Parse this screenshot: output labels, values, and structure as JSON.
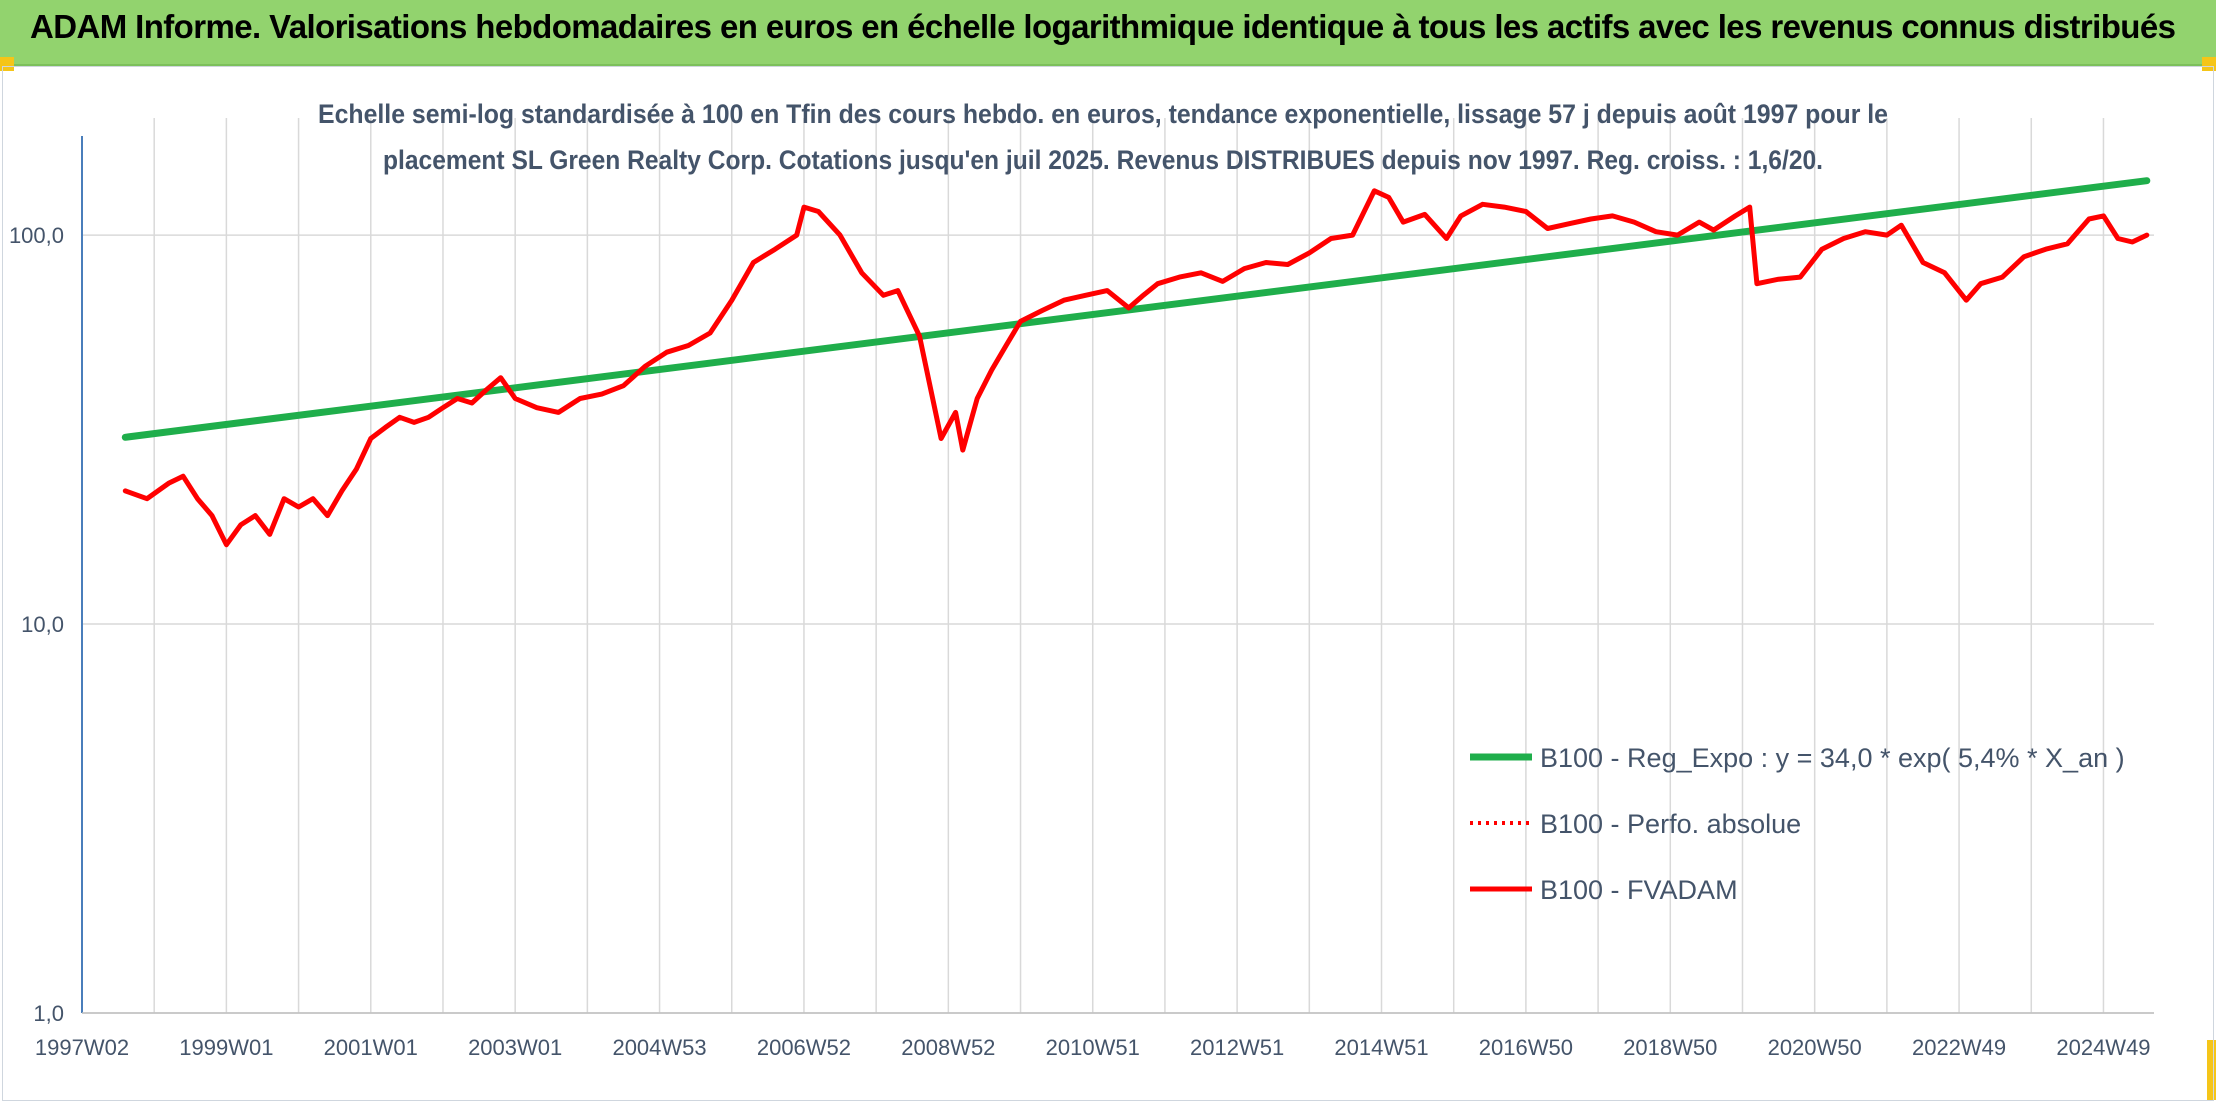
{
  "header": {
    "title": "ADAM Informe. Valorisations hebdomadaires en euros en échelle logarithmique identique à tous les actifs avec les revenus connus distribués"
  },
  "colors": {
    "header_bg": "#92d36e",
    "regression": "#1fae4b",
    "price": "#ff0000",
    "grid": "#d9d9d9",
    "axis": "#4a7ebb",
    "text": "#44546a"
  },
  "chart_data": {
    "type": "line",
    "title_lines": [
      "Echelle semi-log standardisée à 100 en Tfin des cours hebdo. en euros, tendance exponentielle, lissage 57 j depuis août 1997 pour le",
      "placement SL Green Realty Corp. Cotations jusqu'en juil 2025. Revenus DISTRIBUES depuis nov 1997. Reg. croiss. : 1,6/20."
    ],
    "y_scale": "log",
    "ylim": [
      1,
      200
    ],
    "y_ticks": [
      {
        "value": 1,
        "label": "1,0"
      },
      {
        "value": 10,
        "label": "10,0"
      },
      {
        "value": 100,
        "label": "100,0"
      }
    ],
    "xlim": [
      1997.0,
      2025.7
    ],
    "x_ticks": [
      {
        "value": 1997.0,
        "label": "1997W02"
      },
      {
        "value": 1999.0,
        "label": "1999W01"
      },
      {
        "value": 2001.0,
        "label": "2001W01"
      },
      {
        "value": 2003.0,
        "label": "2003W01"
      },
      {
        "value": 2005.0,
        "label": "2004W53"
      },
      {
        "value": 2007.0,
        "label": "2006W52"
      },
      {
        "value": 2009.0,
        "label": "2008W52"
      },
      {
        "value": 2011.0,
        "label": "2010W51"
      },
      {
        "value": 2013.0,
        "label": "2012W51"
      },
      {
        "value": 2015.0,
        "label": "2014W51"
      },
      {
        "value": 2017.0,
        "label": "2016W50"
      },
      {
        "value": 2019.0,
        "label": "2018W50"
      },
      {
        "value": 2021.0,
        "label": "2020W50"
      },
      {
        "value": 2023.0,
        "label": "2022W49"
      },
      {
        "value": 2025.0,
        "label": "2024W49"
      }
    ],
    "grid": true,
    "legend_position": "bottom-right",
    "series": [
      {
        "name": "B100 - Reg_Expo : y = 34,0 * exp( 5,4% *  X_an )",
        "style": "solid-thick",
        "color": "#1fae4b",
        "x": [
          1997.6,
          2025.6
        ],
        "y": [
          30.2,
          138
        ]
      },
      {
        "name": "B100 - Perfo. absolue",
        "style": "dotted",
        "color": "#ff0000",
        "x": [],
        "y": []
      },
      {
        "name": "B100 - FVADAM",
        "style": "solid",
        "color": "#ff0000",
        "x": [
          1997.6,
          1997.9,
          1998.2,
          1998.4,
          1998.6,
          1998.8,
          1999.0,
          1999.2,
          1999.4,
          1999.6,
          1999.8,
          2000.0,
          2000.2,
          2000.4,
          2000.6,
          2000.8,
          2001.0,
          2001.2,
          2001.4,
          2001.6,
          2001.8,
          2002.0,
          2002.2,
          2002.4,
          2002.6,
          2002.8,
          2003.0,
          2003.3,
          2003.6,
          2003.9,
          2004.2,
          2004.5,
          2004.8,
          2005.1,
          2005.4,
          2005.7,
          2006.0,
          2006.3,
          2006.6,
          2006.9,
          2007.0,
          2007.2,
          2007.5,
          2007.8,
          2008.1,
          2008.3,
          2008.6,
          2008.9,
          2009.1,
          2009.2,
          2009.4,
          2009.6,
          2009.8,
          2010.0,
          2010.3,
          2010.6,
          2010.9,
          2011.2,
          2011.5,
          2011.7,
          2011.9,
          2012.2,
          2012.5,
          2012.8,
          2013.1,
          2013.4,
          2013.7,
          2014.0,
          2014.3,
          2014.6,
          2014.9,
          2015.1,
          2015.3,
          2015.6,
          2015.9,
          2016.1,
          2016.4,
          2016.7,
          2017.0,
          2017.3,
          2017.6,
          2017.9,
          2018.2,
          2018.5,
          2018.8,
          2019.1,
          2019.4,
          2019.6,
          2019.9,
          2020.1,
          2020.2,
          2020.5,
          2020.8,
          2021.1,
          2021.4,
          2021.7,
          2022.0,
          2022.2,
          2022.5,
          2022.8,
          2023.1,
          2023.3,
          2023.6,
          2023.9,
          2024.2,
          2024.5,
          2024.8,
          2025.0,
          2025.2,
          2025.4,
          2025.6
        ],
        "y": [
          22,
          21,
          23,
          24,
          21,
          19,
          16,
          18,
          19,
          17,
          21,
          20,
          21,
          19,
          22,
          25,
          30,
          32,
          34,
          33,
          34,
          36,
          38,
          37,
          40,
          43,
          38,
          36,
          35,
          38,
          39,
          41,
          46,
          50,
          52,
          56,
          68,
          85,
          92,
          100,
          118,
          115,
          100,
          80,
          70,
          72,
          55,
          30,
          35,
          28,
          38,
          45,
          52,
          60,
          64,
          68,
          70,
          72,
          65,
          70,
          75,
          78,
          80,
          76,
          82,
          85,
          84,
          90,
          98,
          100,
          130,
          125,
          108,
          113,
          98,
          112,
          120,
          118,
          115,
          104,
          107,
          110,
          112,
          108,
          102,
          100,
          108,
          103,
          112,
          118,
          75,
          77,
          78,
          92,
          98,
          102,
          100,
          106,
          85,
          80,
          68,
          75,
          78,
          88,
          92,
          95,
          110,
          112,
          98,
          96,
          100
        ]
      }
    ]
  }
}
